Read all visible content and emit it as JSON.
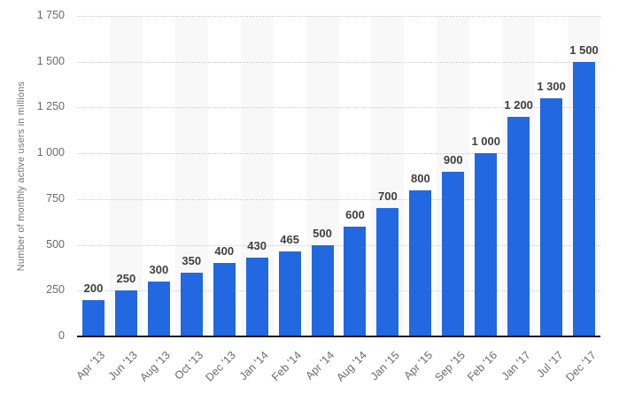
{
  "chart_data": {
    "type": "bar",
    "title": "",
    "xlabel": "",
    "ylabel": "Number of monthly active users in millions",
    "categories": [
      "Apr '13",
      "Jun '13",
      "Aug '13",
      "Oct '13",
      "Dec '13",
      "Jan '14",
      "Feb '14",
      "Apr '14",
      "Aug '14",
      "Jan '15",
      "Apr '15",
      "Sep '15",
      "Feb '16",
      "Jan '17",
      "Jul '17",
      "Dec '17"
    ],
    "values": [
      200,
      250,
      300,
      350,
      400,
      430,
      465,
      500,
      600,
      700,
      800,
      900,
      1000,
      1200,
      1300,
      1500
    ],
    "value_labels": [
      "200",
      "250",
      "300",
      "350",
      "400",
      "430",
      "465",
      "500",
      "600",
      "700",
      "800",
      "900",
      "1 000",
      "1 200",
      "1 300",
      "1 500"
    ],
    "ylim": [
      0,
      1750
    ],
    "ytick_interval": 250,
    "ytick_labels": [
      "0",
      "250",
      "500",
      "750",
      "1 000",
      "1 250",
      "1 500",
      "1 750"
    ],
    "grid": "horizontal-dotted",
    "legend": "none",
    "x_labels_rotation_deg": -45,
    "alternating_column_bands": true
  },
  "colors": {
    "bar": "#2268e0",
    "column_band": "#f8f8f8",
    "gridline": "#cbcbcb",
    "axis_line": "#1a1a1a",
    "value_label": "#3f3f3f",
    "tick_label": "#6b6b6b",
    "axis_title": "#757575",
    "background": "#ffffff"
  }
}
